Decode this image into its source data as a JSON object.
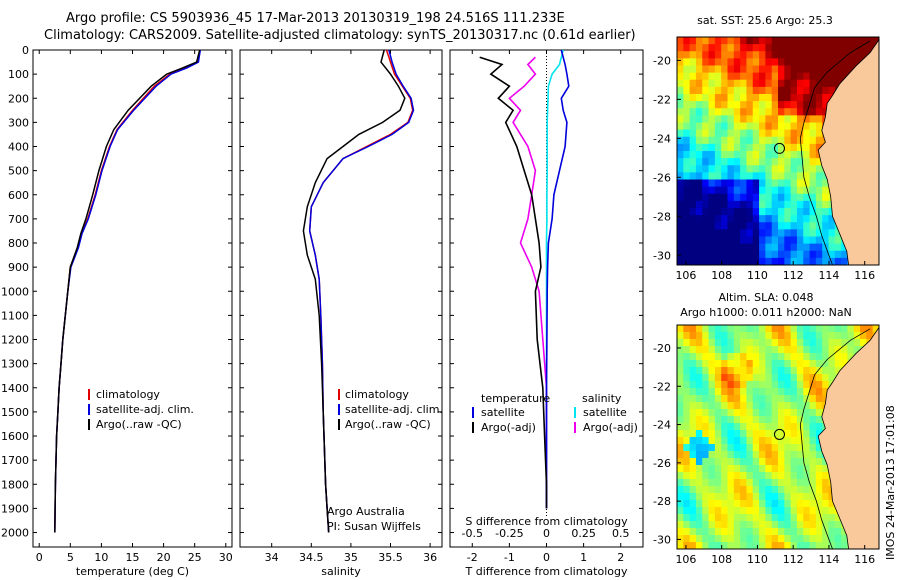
{
  "title_line1": "Argo profile: CS 5903936_45 17-Mar-2013 20130319_198 24.516S 111.233E",
  "title_line2": "Climatology: CARS2009. Satellite-adjusted climatology: synTS_20130317.nc (0.61d earlier)",
  "colors": {
    "climatology": "#e00000",
    "satellite": "#0000dd",
    "argo": "#000000",
    "sat_salinity": "#00e5ee",
    "argo_salinity": "#ee00ee",
    "land": "#f9c89b"
  },
  "chart_data": [
    {
      "id": "temperature",
      "type": "line",
      "xlabel": "temperature (deg C)",
      "ylabel": "",
      "xlim": [
        -1,
        31
      ],
      "ylim": [
        0,
        2060
      ],
      "xticks": [
        "0",
        "5",
        "10",
        "15",
        "20",
        "25",
        "30"
      ],
      "yticks": [
        "0",
        "100",
        "200",
        "300",
        "400",
        "500",
        "600",
        "700",
        "800",
        "900",
        "1000",
        "1100",
        "1200",
        "1300",
        "1400",
        "1500",
        "1600",
        "1700",
        "1800",
        "1900",
        "2000"
      ],
      "legend": [
        "climatology",
        "satellite-adj. clim.",
        "Argo(..raw -QC)"
      ],
      "series": [
        {
          "name": "climatology",
          "x": [
            25.8,
            25.5,
            23.5,
            21,
            18.5,
            15,
            12.5,
            11.3,
            10,
            9,
            7.8,
            6.8,
            6.2,
            5,
            4.6,
            4.2,
            3.8,
            3.5,
            3.2,
            3.0,
            2.8,
            2.6,
            2.5
          ],
          "y": [
            0,
            50,
            75,
            100,
            150,
            250,
            330,
            400,
            500,
            600,
            700,
            760,
            820,
            900,
            1000,
            1100,
            1200,
            1300,
            1400,
            1500,
            1600,
            1800,
            2000
          ]
        },
        {
          "name": "satellite-adj. clim.",
          "x": [
            25.9,
            25.6,
            23.7,
            21.2,
            18.8,
            15.2,
            12.6,
            11.4,
            10.1,
            9.1,
            7.9,
            6.9,
            6.3,
            5.1,
            4.6,
            4.2,
            3.8,
            3.5,
            3.2,
            3.0,
            2.8,
            2.6,
            2.5
          ],
          "y": [
            0,
            50,
            75,
            100,
            150,
            250,
            330,
            400,
            500,
            600,
            700,
            760,
            820,
            900,
            1000,
            1100,
            1200,
            1300,
            1400,
            1500,
            1600,
            1800,
            2000
          ]
        },
        {
          "name": "Argo(..raw -QC)",
          "x": [
            25.8,
            25.3,
            23,
            20.5,
            18,
            14.3,
            12,
            10.8,
            9.6,
            8.6,
            7.5,
            6.7,
            6.1,
            5,
            4.6,
            4.2,
            3.8,
            3.5,
            3.2,
            3.0,
            2.8,
            2.6,
            2.5
          ],
          "y": [
            0,
            50,
            75,
            100,
            150,
            250,
            330,
            400,
            500,
            600,
            700,
            760,
            820,
            900,
            1000,
            1100,
            1200,
            1300,
            1400,
            1500,
            1600,
            1800,
            2000
          ]
        }
      ]
    },
    {
      "id": "salinity",
      "type": "line",
      "xlabel": "salinity",
      "ylabel": "",
      "xlim": [
        33.6,
        36.15
      ],
      "ylim": [
        0,
        2060
      ],
      "xticks": [
        "34",
        "34.5",
        "35",
        "35.5",
        "36"
      ],
      "legend": [
        "climatology",
        "satellite-adj. clim.",
        "Argo(..raw -QC)"
      ],
      "annotations": [
        "Argo Australia",
        "PI: Susan Wijffels"
      ],
      "series": [
        {
          "name": "climatology",
          "x": [
            35.45,
            35.5,
            35.55,
            35.65,
            35.75,
            35.78,
            35.72,
            35.5,
            35.2,
            34.9,
            34.65,
            34.5,
            34.48,
            34.55,
            34.6,
            34.62,
            34.64,
            34.65,
            34.66,
            34.67,
            34.68,
            34.7,
            34.72
          ],
          "y": [
            0,
            50,
            100,
            150,
            200,
            250,
            300,
            350,
            400,
            450,
            550,
            650,
            750,
            850,
            950,
            1100,
            1300,
            1500,
            1600,
            1700,
            1800,
            1900,
            2000
          ]
        },
        {
          "name": "satellite-adj. clim.",
          "x": [
            35.48,
            35.52,
            35.57,
            35.66,
            35.76,
            35.79,
            35.73,
            35.52,
            35.22,
            34.9,
            34.65,
            34.5,
            34.48,
            34.55,
            34.6,
            34.62,
            34.64,
            34.65,
            34.66,
            34.67,
            34.68,
            34.7,
            34.72
          ],
          "y": [
            0,
            50,
            100,
            150,
            200,
            250,
            300,
            350,
            400,
            450,
            550,
            650,
            750,
            850,
            950,
            1100,
            1300,
            1500,
            1600,
            1700,
            1800,
            1900,
            2000
          ]
        },
        {
          "name": "Argo(..raw -QC)",
          "x": [
            35.42,
            35.38,
            35.5,
            35.6,
            35.68,
            35.62,
            35.4,
            35.1,
            34.9,
            34.7,
            34.55,
            34.45,
            34.4,
            34.45,
            34.55,
            34.6,
            34.63,
            34.65,
            34.66,
            34.67,
            34.68,
            34.7,
            34.72
          ],
          "y": [
            0,
            50,
            100,
            150,
            200,
            250,
            300,
            350,
            400,
            450,
            550,
            650,
            750,
            850,
            950,
            1100,
            1300,
            1500,
            1600,
            1700,
            1800,
            1900,
            2000
          ]
        }
      ]
    },
    {
      "id": "difference",
      "type": "line",
      "xlabel": "T difference from climatology",
      "xlabel_top": "S difference from climatology",
      "xlim": [
        -2.6,
        2.6
      ],
      "ylim": [
        0,
        2060
      ],
      "xticks_T": [
        "-2",
        "-1",
        "0",
        "1",
        "2"
      ],
      "xticks_S": [
        "-0.5",
        "-0.25",
        "0",
        "0.25",
        "0.5"
      ],
      "legend_temperature_title": "temperature",
      "legend_salinity_title": "salinity",
      "legend": [
        "satellite",
        "Argo(-adj)",
        "satellite",
        "Argo(-adj)"
      ],
      "series": [
        {
          "name": "satellite",
          "x": [
            0.4,
            0.5,
            0.55,
            0.6,
            0.4,
            0.45,
            0.55,
            0.5,
            0.35,
            0.2,
            0.15,
            0.05,
            0.03,
            0.02,
            0.01,
            0.0,
            0.0,
            0.0,
            0.0
          ],
          "y": [
            0,
            60,
            100,
            150,
            200,
            250,
            300,
            400,
            500,
            600,
            700,
            800,
            900,
            1000,
            1200,
            1400,
            1600,
            1800,
            1900
          ]
        },
        {
          "name": "Argo(-adj)",
          "x": [
            -1.8,
            -1.2,
            -1.5,
            -1.0,
            -1.3,
            -0.9,
            -1.1,
            -0.8,
            -0.6,
            -0.4,
            -0.3,
            -0.2,
            -0.15,
            -0.3,
            -0.25,
            -0.1,
            -0.05,
            0,
            0
          ],
          "y": [
            30,
            60,
            100,
            150,
            200,
            250,
            300,
            400,
            500,
            600,
            700,
            800,
            900,
            1000,
            1200,
            1400,
            1600,
            1800,
            1900
          ]
        },
        {
          "name": "satellite",
          "x": [
            0.45,
            0.35,
            0.15,
            0.05,
            0.04,
            0.03,
            0.02,
            0.02,
            0.02,
            0.01,
            0.01,
            0.0,
            0.0,
            0.0,
            0.0,
            0.0,
            0.0,
            0.0,
            0.0
          ],
          "y": [
            0,
            60,
            100,
            150,
            200,
            250,
            300,
            400,
            500,
            600,
            700,
            800,
            900,
            1000,
            1200,
            1400,
            1600,
            1800,
            1900
          ]
        },
        {
          "name": "Argo(-adj)",
          "x": [
            -0.3,
            -0.5,
            -0.3,
            -0.6,
            -1.0,
            -0.7,
            -0.9,
            -0.5,
            -0.3,
            -0.4,
            -0.5,
            -0.7,
            -0.4,
            -0.2,
            -0.1,
            0,
            0,
            0,
            0
          ],
          "y": [
            30,
            60,
            100,
            150,
            200,
            250,
            300,
            400,
            500,
            600,
            700,
            800,
            900,
            1000,
            1200,
            1400,
            1600,
            1800,
            1900
          ]
        }
      ]
    },
    {
      "id": "sst_map",
      "type": "heatmap",
      "title": "sat. SST: 25.6  Argo: 25.3",
      "xlim": [
        105.5,
        116.8
      ],
      "ylim": [
        -30.5,
        -18.8
      ],
      "xticks": [
        "106",
        "108",
        "110",
        "112",
        "114",
        "116"
      ],
      "yticks": [
        "-20",
        "-22",
        "-24",
        "-26",
        "-28",
        "-30"
      ]
    },
    {
      "id": "sla_map",
      "type": "heatmap",
      "title_line1": "Altim. SLA: 0.048",
      "title_line2": "Argo h1000: 0.011 h2000: NaN",
      "xlim": [
        105.5,
        116.8
      ],
      "ylim": [
        -30.5,
        -18.8
      ],
      "xticks": [
        "106",
        "108",
        "110",
        "112",
        "114",
        "116"
      ],
      "yticks": [
        "-20",
        "-22",
        "-24",
        "-26",
        "-28",
        "-30"
      ]
    }
  ],
  "credit": "IMOS 24-Mar-2013 17:01:08",
  "argo_position": {
    "lon": 111.233,
    "lat": -24.516
  }
}
